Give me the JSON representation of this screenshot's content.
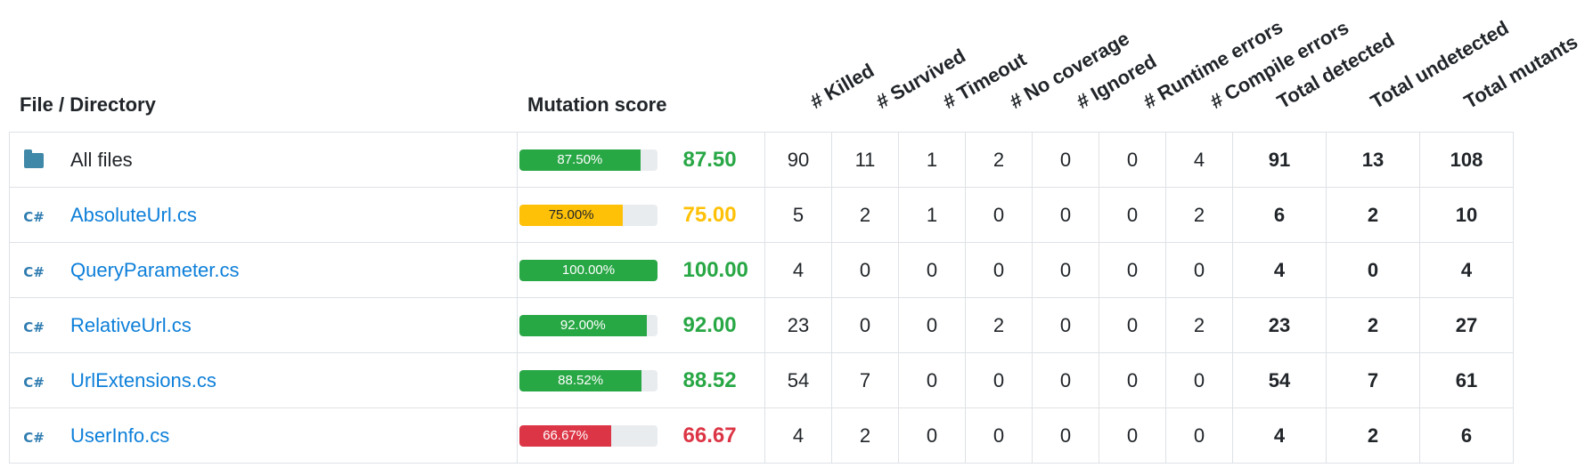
{
  "headers": {
    "file": "File / Directory",
    "score": "Mutation score",
    "killed": "# Killed",
    "survived": "# Survived",
    "timeout": "# Timeout",
    "no_coverage": "# No coverage",
    "ignored": "# Ignored",
    "runtime_errors": "# Runtime errors",
    "compile_errors": "# Compile errors",
    "total_detected": "Total detected",
    "total_undetected": "Total undetected",
    "total_mutants": "Total mutants"
  },
  "colors": {
    "green": "#28a745",
    "yellow": "#ffc107",
    "red": "#dc3545",
    "link": "#0d7fd9"
  },
  "rows": [
    {
      "name": "All files",
      "icon": "folder-icon",
      "is_link": false,
      "bar_label": "87.50%",
      "progress_pct": 87.5,
      "score": "87.50",
      "status": "green",
      "killed": "90",
      "survived": "11",
      "timeout": "1",
      "no_coverage": "2",
      "ignored": "0",
      "runtime_errors": "0",
      "compile_errors": "4",
      "total_detected": "91",
      "total_undetected": "13",
      "total_mutants": "108"
    },
    {
      "name": "AbsoluteUrl.cs",
      "icon": "csharp-file-icon",
      "is_link": true,
      "bar_label": "75.00%",
      "progress_pct": 75,
      "score": "75.00",
      "status": "yellow",
      "killed": "5",
      "survived": "2",
      "timeout": "1",
      "no_coverage": "0",
      "ignored": "0",
      "runtime_errors": "0",
      "compile_errors": "2",
      "total_detected": "6",
      "total_undetected": "2",
      "total_mutants": "10"
    },
    {
      "name": "QueryParameter.cs",
      "icon": "csharp-file-icon",
      "is_link": true,
      "bar_label": "100.00%",
      "progress_pct": 100,
      "score": "100.00",
      "status": "green",
      "killed": "4",
      "survived": "0",
      "timeout": "0",
      "no_coverage": "0",
      "ignored": "0",
      "runtime_errors": "0",
      "compile_errors": "0",
      "total_detected": "4",
      "total_undetected": "0",
      "total_mutants": "4"
    },
    {
      "name": "RelativeUrl.cs",
      "icon": "csharp-file-icon",
      "is_link": true,
      "bar_label": "92.00%",
      "progress_pct": 92,
      "score": "92.00",
      "status": "green",
      "killed": "23",
      "survived": "0",
      "timeout": "0",
      "no_coverage": "2",
      "ignored": "0",
      "runtime_errors": "0",
      "compile_errors": "2",
      "total_detected": "23",
      "total_undetected": "2",
      "total_mutants": "27"
    },
    {
      "name": "UrlExtensions.cs",
      "icon": "csharp-file-icon",
      "is_link": true,
      "bar_label": "88.52%",
      "progress_pct": 88.52,
      "score": "88.52",
      "status": "green",
      "killed": "54",
      "survived": "7",
      "timeout": "0",
      "no_coverage": "0",
      "ignored": "0",
      "runtime_errors": "0",
      "compile_errors": "0",
      "total_detected": "54",
      "total_undetected": "7",
      "total_mutants": "61"
    },
    {
      "name": "UserInfo.cs",
      "icon": "csharp-file-icon",
      "is_link": true,
      "bar_label": "66.67%",
      "progress_pct": 66.67,
      "score": "66.67",
      "status": "red",
      "killed": "4",
      "survived": "2",
      "timeout": "0",
      "no_coverage": "0",
      "ignored": "0",
      "runtime_errors": "0",
      "compile_errors": "0",
      "total_detected": "4",
      "total_undetected": "2",
      "total_mutants": "6"
    }
  ]
}
